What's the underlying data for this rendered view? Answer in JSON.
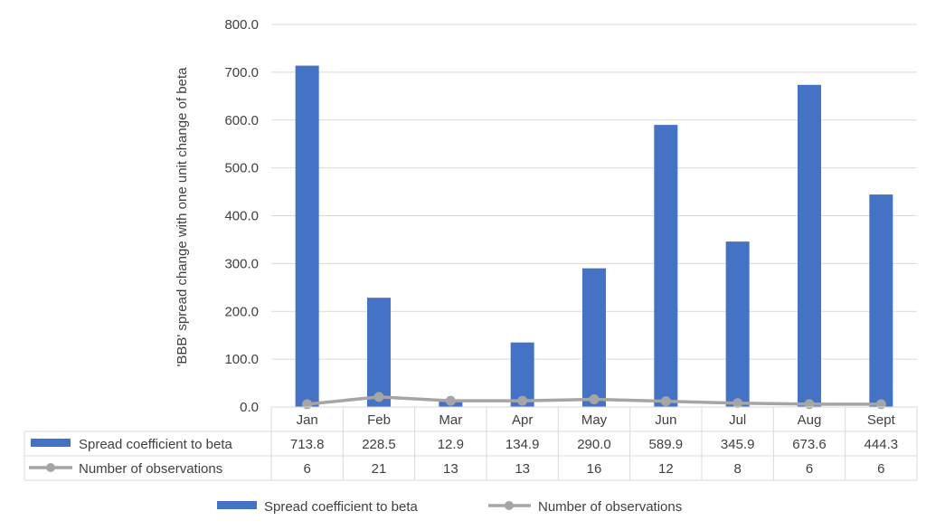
{
  "chart_data": {
    "type": "bar",
    "title": "",
    "xlabel": "",
    "ylabel": "'BBB' spread change with one unit change of beta",
    "ylim": [
      0,
      800
    ],
    "yticks": [
      "0.0",
      "100.0",
      "200.0",
      "300.0",
      "400.0",
      "500.0",
      "600.0",
      "700.0",
      "800.0"
    ],
    "ytick_values": [
      0,
      100,
      200,
      300,
      400,
      500,
      600,
      700,
      800
    ],
    "grid": true,
    "legend_position": "bottom",
    "categories": [
      "Jan",
      "Feb",
      "Mar",
      "Apr",
      "May",
      "Jun",
      "Jul",
      "Aug",
      "Sept"
    ],
    "series": [
      {
        "name": "Spread coefficient to beta",
        "type": "bar",
        "color": "#4472C4",
        "values": [
          713.8,
          228.5,
          12.9,
          134.9,
          290.0,
          589.9,
          345.9,
          673.6,
          444.3
        ],
        "labels": [
          "713.8",
          "228.5",
          "12.9",
          "134.9",
          "290.0",
          "589.9",
          "345.9",
          "673.6",
          "444.3"
        ]
      },
      {
        "name": "Number of observations",
        "type": "line",
        "color": "#A5A5A5",
        "values": [
          6,
          21,
          13,
          13,
          16,
          12,
          8,
          6,
          6
        ],
        "labels": [
          "6",
          "21",
          "13",
          "13",
          "16",
          "12",
          "8",
          "6",
          "6"
        ]
      }
    ],
    "data_table": true
  }
}
